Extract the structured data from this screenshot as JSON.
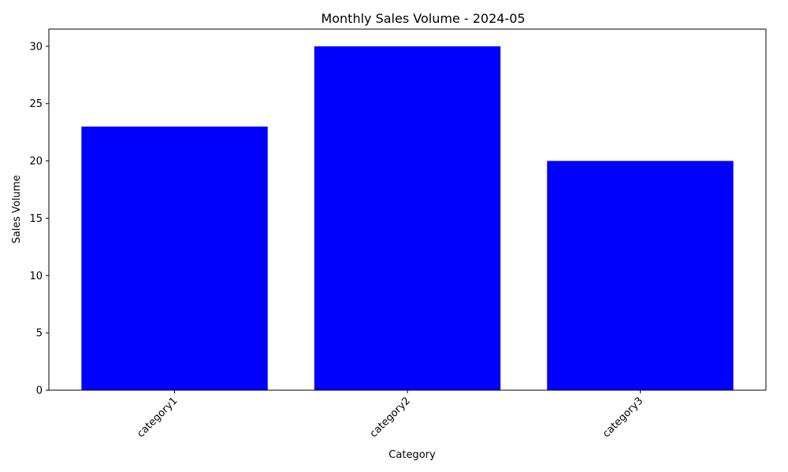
{
  "chart_data": {
    "type": "bar",
    "title": "Monthly Sales Volume - 2024-05",
    "xlabel": "Category",
    "ylabel": "Sales Volume",
    "categories": [
      "category1",
      "category2",
      "category3"
    ],
    "values": [
      23,
      30,
      20
    ],
    "ylim": [
      0,
      31.5
    ],
    "yticks": [
      0,
      5,
      10,
      15,
      20,
      25,
      30
    ],
    "bar_color": "#0000ff",
    "grid": false,
    "legend": "none",
    "xtick_rotation_deg": 45
  }
}
